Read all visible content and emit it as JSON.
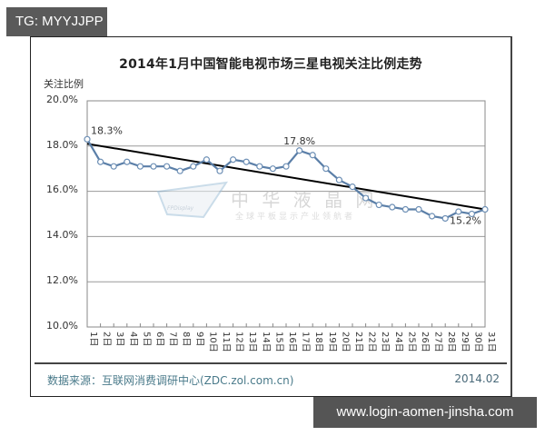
{
  "overlay": {
    "top_tag": "TG: MYYJJPP",
    "bottom_tag": "www.login-aomen-jinsha.com"
  },
  "chart": {
    "title": "2014年1月中国智能电视市场三星电视关注比例走势",
    "ylabel": "关注比例",
    "yticks": [
      "20.0%",
      "18.0%",
      "16.0%",
      "14.0%",
      "12.0%",
      "10.0%"
    ],
    "source": "数据来源：互联网消费调研中心(ZDC.zol.com.cn)",
    "date": "2014.02",
    "watermark": {
      "main": "中 华 液 晶 网",
      "sub": "全球平板显示产业领航者",
      "logo": "FPDisplay"
    },
    "annotations": [
      "18.3%",
      "17.8%",
      "15.2%"
    ]
  },
  "chart_data": {
    "type": "line",
    "title": "2014年1月中国智能电视市场三星电视关注比例走势",
    "xlabel": "",
    "ylabel": "关注比例",
    "ylim": [
      10.0,
      20.0
    ],
    "yticks": [
      10.0,
      12.0,
      14.0,
      16.0,
      18.0,
      20.0
    ],
    "grid": true,
    "categories": [
      "1日",
      "2日",
      "3日",
      "4日",
      "5日",
      "6日",
      "7日",
      "8日",
      "9日",
      "10日",
      "11日",
      "12日",
      "13日",
      "14日",
      "15日",
      "16日",
      "17日",
      "18日",
      "19日",
      "20日",
      "21日",
      "22日",
      "23日",
      "24日",
      "25日",
      "26日",
      "27日",
      "28日",
      "29日",
      "30日",
      "31日"
    ],
    "series": [
      {
        "name": "关注比例",
        "color": "#5b7fa8",
        "values": [
          18.3,
          17.3,
          17.1,
          17.3,
          17.1,
          17.1,
          17.1,
          16.9,
          17.1,
          17.4,
          16.9,
          17.4,
          17.3,
          17.1,
          17.0,
          17.1,
          17.8,
          17.6,
          17.0,
          16.5,
          16.2,
          15.7,
          15.4,
          15.3,
          15.2,
          15.2,
          14.9,
          14.8,
          15.1,
          15.0,
          15.2
        ]
      },
      {
        "name": "趋势线",
        "color": "#000000",
        "type": "linear-trend",
        "values": [
          18.1,
          15.2
        ]
      }
    ],
    "annotations": [
      {
        "x": "1日",
        "text": "18.3%"
      },
      {
        "x": "17日",
        "text": "17.8%"
      },
      {
        "x": "31日",
        "text": "15.2%"
      }
    ]
  }
}
